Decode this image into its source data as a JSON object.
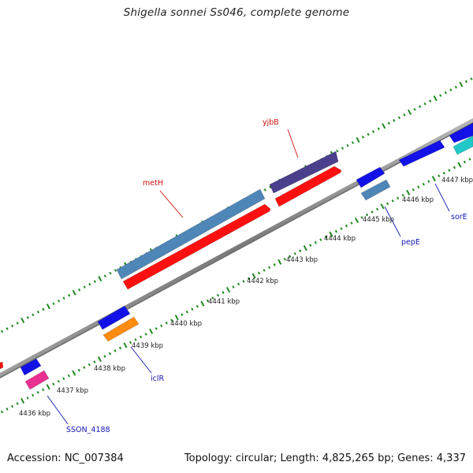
{
  "title": "Shigella sonnei Ss046, complete genome",
  "footer": {
    "accession": "Accession: NC_007384",
    "summary": "Topology: circular; Length: 4,825,265 bp; Genes: 4,337"
  },
  "colors": {
    "backbone": "#8a8a8a",
    "tick_dots": "#1f8a1f",
    "label_red": "#cc1111",
    "label_blue": "#1515b5"
  },
  "scale_labels": [
    "4436 kbp",
    "4437 kbp",
    "4438 kbp",
    "4439 kbp",
    "4440 kbp",
    "4441 kbp",
    "4442 kbp",
    "4443 kbp",
    "4444 kbp",
    "4445 kbp",
    "4446 kbp",
    "4447 kbp"
  ],
  "gene_labels": [
    {
      "name": "yjbB",
      "color_key": "label_red"
    },
    {
      "name": "metH",
      "color_key": "label_red"
    },
    {
      "name": "iclR",
      "color_key": "label_blue"
    },
    {
      "name": "pepE",
      "color_key": "label_blue"
    },
    {
      "name": "sorE",
      "color_key": "label_blue"
    },
    {
      "name": "SSON_4188",
      "color_key": "label_blue"
    }
  ],
  "features": [
    {
      "name": "metH",
      "track": "outer-plus",
      "color": "#4f86b8"
    },
    {
      "name": "metH",
      "track": "inner-plus",
      "color": "#ff1010"
    },
    {
      "name": "yjbB",
      "track": "outer-plus",
      "color": "#4a3f8c"
    },
    {
      "name": "yjbB",
      "track": "inner-plus",
      "color": "#ff1010"
    },
    {
      "name": "pepE",
      "track": "outer-minus",
      "color": "#1212e8"
    },
    {
      "name": "pepE",
      "track": "inner-minus",
      "color": "#4f86b8"
    },
    {
      "name": "gene-4446",
      "track": "outer-minus",
      "color": "#1212e8"
    },
    {
      "name": "gene-4447",
      "track": "outer-minus",
      "color": "#1212e8"
    },
    {
      "name": "sorE",
      "track": "inner-minus",
      "color": "#20c8c8"
    },
    {
      "name": "iclR",
      "track": "outer-minus",
      "color": "#1212e8"
    },
    {
      "name": "iclR",
      "track": "inner-minus",
      "color": "#ff8c10"
    },
    {
      "name": "SSON_4188",
      "track": "outer-minus",
      "color": "#1212e8"
    },
    {
      "name": "SSON_4188",
      "track": "inner-minus",
      "color": "#e83090"
    }
  ]
}
